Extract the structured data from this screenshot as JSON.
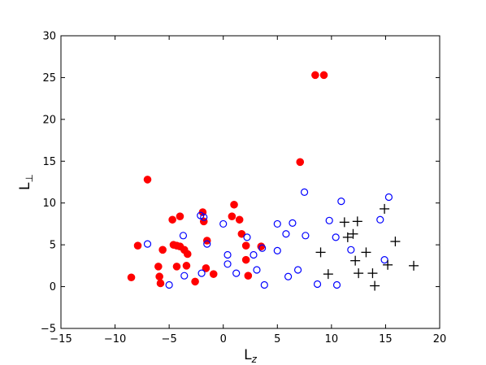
{
  "chart_data": {
    "type": "scatter",
    "title": "",
    "xlabel_main": "L",
    "xlabel_sub": "z",
    "ylabel_main": "L",
    "ylabel_sub": "⊥",
    "xlim": [
      -15,
      20
    ],
    "ylim": [
      -5,
      30
    ],
    "xticks": [
      -15,
      -10,
      -5,
      0,
      5,
      10,
      15,
      20
    ],
    "yticks": [
      -5,
      0,
      5,
      10,
      15,
      20,
      25,
      30
    ],
    "xtick_labels": [
      "−15",
      "−10",
      "−5",
      "0",
      "5",
      "10",
      "15",
      "20"
    ],
    "ytick_labels": [
      "−5",
      "0",
      "5",
      "10",
      "15",
      "20",
      "25",
      "30"
    ],
    "grid": false,
    "series": [
      {
        "marker": "filled-circle",
        "color": "#ff0000",
        "points": [
          [
            -8.5,
            1.1
          ],
          [
            -7.9,
            4.9
          ],
          [
            -7,
            12.8
          ],
          [
            -6,
            2.4
          ],
          [
            -5.9,
            1.2
          ],
          [
            -5.8,
            0.4
          ],
          [
            -5.6,
            4.4
          ],
          [
            -4.7,
            8.0
          ],
          [
            -4.6,
            5.0
          ],
          [
            -4.3,
            2.4
          ],
          [
            -4.3,
            4.9
          ],
          [
            -4.0,
            8.4
          ],
          [
            -4.0,
            4.8
          ],
          [
            -3.6,
            4.4
          ],
          [
            -3.4,
            2.5
          ],
          [
            -3.3,
            3.9
          ],
          [
            -2.6,
            0.6
          ],
          [
            -1.9,
            8.9
          ],
          [
            -1.8,
            7.8
          ],
          [
            -1.5,
            5.5
          ],
          [
            -1.6,
            2.2
          ],
          [
            -0.9,
            1.5
          ],
          [
            0.8,
            8.4
          ],
          [
            1.0,
            9.8
          ],
          [
            1.5,
            8.0
          ],
          [
            1.7,
            6.3
          ],
          [
            2.1,
            4.9
          ],
          [
            2.1,
            3.2
          ],
          [
            2.3,
            1.3
          ],
          [
            3.5,
            4.8
          ],
          [
            7.1,
            14.9
          ],
          [
            8.5,
            25.3
          ],
          [
            9.3,
            25.3
          ]
        ]
      },
      {
        "marker": "open-circle",
        "color": "#0000ff",
        "points": [
          [
            -7,
            5.1
          ],
          [
            -5.0,
            0.2
          ],
          [
            -3.7,
            6.1
          ],
          [
            -3.6,
            1.3
          ],
          [
            -2.0,
            1.6
          ],
          [
            -2.1,
            8.5
          ],
          [
            -1.8,
            8.3
          ],
          [
            -1.5,
            5.1
          ],
          [
            0.0,
            7.5
          ],
          [
            0.4,
            3.8
          ],
          [
            0.4,
            2.7
          ],
          [
            1.2,
            1.6
          ],
          [
            2.2,
            5.9
          ],
          [
            2.8,
            3.8
          ],
          [
            3.1,
            2.0
          ],
          [
            3.6,
            4.6
          ],
          [
            3.8,
            0.2
          ],
          [
            5.0,
            4.3
          ],
          [
            5.0,
            7.5
          ],
          [
            5.8,
            6.3
          ],
          [
            6.0,
            1.2
          ],
          [
            6.4,
            7.6
          ],
          [
            6.9,
            2.0
          ],
          [
            7.6,
            6.1
          ],
          [
            7.5,
            11.3
          ],
          [
            8.7,
            0.3
          ],
          [
            9.8,
            7.9
          ],
          [
            10.4,
            5.9
          ],
          [
            10.5,
            0.2
          ],
          [
            10.9,
            10.2
          ],
          [
            11.8,
            4.4
          ],
          [
            14.5,
            8.0
          ],
          [
            14.9,
            3.2
          ],
          [
            15.3,
            10.7
          ]
        ]
      },
      {
        "marker": "plus",
        "color": "#000000",
        "points": [
          [
            9.0,
            4.1
          ],
          [
            9.7,
            1.5
          ],
          [
            11.2,
            7.7
          ],
          [
            11.5,
            5.9
          ],
          [
            12.0,
            6.3
          ],
          [
            12.2,
            3.1
          ],
          [
            12.4,
            7.8
          ],
          [
            12.5,
            1.6
          ],
          [
            13.2,
            4.1
          ],
          [
            13.8,
            1.6
          ],
          [
            14.0,
            0.1
          ],
          [
            14.9,
            9.3
          ],
          [
            15.2,
            2.6
          ],
          [
            15.9,
            5.4
          ],
          [
            17.6,
            2.5
          ]
        ]
      }
    ]
  }
}
